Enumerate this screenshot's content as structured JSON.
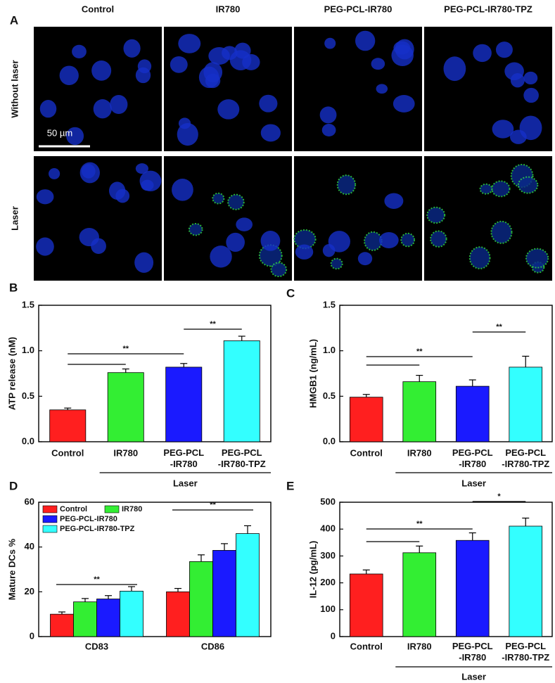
{
  "micrograph": {
    "label": "A",
    "columns": [
      "Control",
      "IR780",
      "PEG-PCL-IR780",
      "PEG-PCL-IR780-TPZ"
    ],
    "rows": [
      "Without laser",
      "Laser"
    ],
    "scale_bar": "50 µm"
  },
  "chart_data": [
    {
      "type": "bar",
      "label": "B",
      "ylabel": "ATP release (nM)",
      "categories": [
        "Control",
        "IR780",
        "PEG-PCL\n-IR780",
        "PEG-PCL\n-IR780-TPZ"
      ],
      "values": [
        0.35,
        0.76,
        0.82,
        1.11
      ],
      "errors": [
        0.02,
        0.04,
        0.04,
        0.05
      ],
      "colors": [
        "#ff1f1f",
        "#33ee33",
        "#1a1aff",
        "#33ffff"
      ],
      "ylim": [
        0,
        1.5
      ],
      "yticks": [
        {
          "value": 0,
          "label": "0.0"
        },
        0.5,
        {
          "value": 1,
          "label": "1.0"
        },
        1.5
      ],
      "group_label": "Laser",
      "annotations": [
        "**",
        "**"
      ]
    },
    {
      "type": "bar",
      "label": "C",
      "ylabel": "HMGB1 (ng/mL)",
      "categories": [
        "Control",
        "IR780",
        "PEG-PCL\n-IR780",
        "PEG-PCL\n-IR780-TPZ"
      ],
      "values": [
        0.49,
        0.66,
        0.61,
        0.82
      ],
      "errors": [
        0.03,
        0.07,
        0.07,
        0.12
      ],
      "colors": [
        "#ff1f1f",
        "#33ee33",
        "#1a1aff",
        "#33ffff"
      ],
      "ylim": [
        0,
        1.5
      ],
      "yticks": [
        {
          "value": 0,
          "label": "0.0"
        },
        0.5,
        {
          "value": 1,
          "label": "1.0"
        },
        1.5
      ],
      "group_label": "Laser",
      "annotations": [
        "**",
        "**"
      ]
    },
    {
      "type": "bar",
      "label": "D",
      "ylabel": "Mature DCs %",
      "categories": [
        "CD83",
        "CD86"
      ],
      "series": [
        {
          "name": "Control",
          "color": "#ff1f1f",
          "values": [
            10,
            20
          ],
          "errors": [
            1,
            1.5
          ]
        },
        {
          "name": "IR780",
          "color": "#33ee33",
          "values": [
            15.5,
            33.5
          ],
          "errors": [
            1.5,
            3
          ]
        },
        {
          "name": "PEG-PCL-IR780",
          "color": "#1a1aff",
          "values": [
            16.8,
            38.5
          ],
          "errors": [
            1.5,
            3
          ]
        },
        {
          "name": "PEG-PCL-IR780-TPZ",
          "color": "#33ffff",
          "values": [
            20.3,
            46
          ],
          "errors": [
            2,
            3.5
          ]
        }
      ],
      "ylim": [
        0,
        60
      ],
      "yticks": [
        0,
        20,
        40,
        60
      ],
      "annotations": [
        "**",
        "**"
      ]
    },
    {
      "type": "bar",
      "label": "E",
      "ylabel": "IL-12 (pg/mL)",
      "categories": [
        "Control",
        "IR780",
        "PEG-PCL\n-IR780",
        "PEG-PCL\n-IR780-TPZ"
      ],
      "values": [
        233,
        312,
        358,
        411
      ],
      "errors": [
        15,
        25,
        28,
        30
      ],
      "colors": [
        "#ff1f1f",
        "#33ee33",
        "#1a1aff",
        "#33ffff"
      ],
      "ylim": [
        0,
        500
      ],
      "yticks": [
        0,
        100,
        200,
        300,
        400,
        500
      ],
      "group_label": "Laser",
      "annotations": [
        "**",
        "*"
      ]
    }
  ]
}
